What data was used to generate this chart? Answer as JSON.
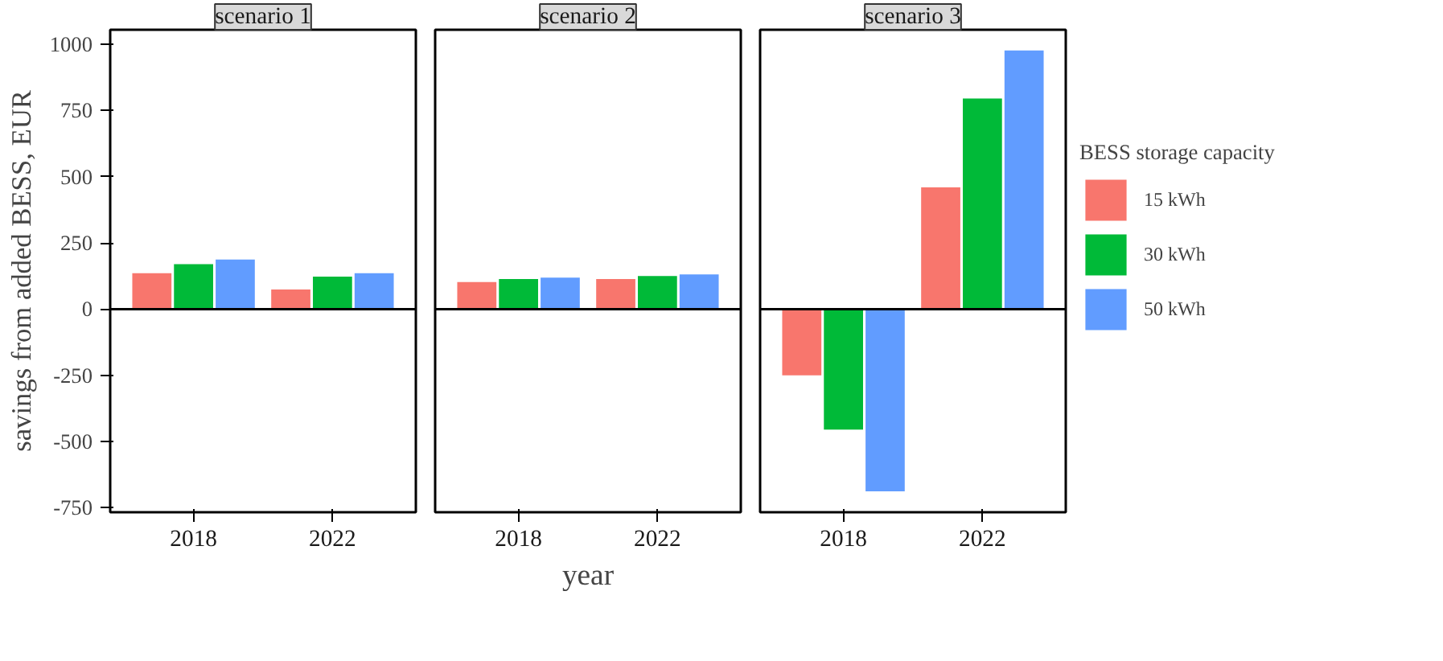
{
  "chart_data": [
    {
      "type": "bar",
      "title": "scenario 1",
      "ylabel": "savings from added BESS, EUR",
      "categories": [
        "2018",
        "2022"
      ],
      "series": [
        {
          "color": "#f8766d",
          "values": [
            136,
            74
          ]
        },
        {
          "color": "#00ba38",
          "values": [
            170,
            123
          ]
        },
        {
          "color": "#619cff",
          "values": [
            187,
            136
          ]
        }
      ],
      "ylim": [
        -767,
        1055
      ],
      "yticks": [
        -750,
        -500,
        -250,
        0,
        250,
        500,
        750,
        1000
      ],
      "ref_lines": [
        {
          "axis": "y",
          "value": 0
        }
      ]
    },
    {
      "type": "bar",
      "title": "scenario 2",
      "xlabel": "year",
      "categories": [
        "2018",
        "2022"
      ],
      "series": [
        {
          "color": "#f8766d",
          "values": [
            102,
            114
          ]
        },
        {
          "color": "#00ba38",
          "values": [
            114,
            125
          ]
        },
        {
          "color": "#619cff",
          "values": [
            119,
            131
          ]
        }
      ],
      "ylim": [
        -767,
        1055
      ],
      "yticks": [
        -750,
        -500,
        -250,
        0,
        250,
        500,
        750,
        1000
      ],
      "tick_labels": "x",
      "ref_lines": [
        {
          "axis": "y",
          "value": 0
        }
      ]
    },
    {
      "type": "bar",
      "title": "scenario 3",
      "legend_title": "BESS storage capacity",
      "legend": "right",
      "categories": [
        "2018",
        "2022"
      ],
      "series": [
        {
          "name": "15 kWh",
          "color": "#f8766d",
          "values": [
            -250,
            460
          ]
        },
        {
          "name": "30 kWh",
          "color": "#00ba38",
          "values": [
            -455,
            795
          ]
        },
        {
          "name": "50 kWh",
          "color": "#619cff",
          "values": [
            -688,
            977
          ]
        }
      ],
      "ylim": [
        -767,
        1055
      ],
      "yticks": [
        -750,
        -500,
        -250,
        0,
        250,
        500,
        750,
        1000
      ],
      "tick_labels": "x",
      "ref_lines": [
        {
          "axis": "y",
          "value": 0
        }
      ]
    }
  ]
}
